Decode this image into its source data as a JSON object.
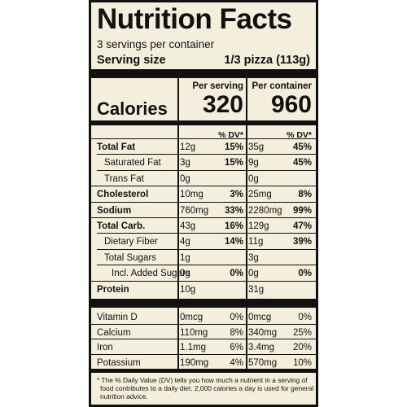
{
  "title": "Nutrition Facts",
  "servings_per_container": "3 servings per container",
  "serving_size_label": "Serving size",
  "serving_size_value": "1/3 pizza (113g)",
  "col_per_serving": "Per serving",
  "col_per_container": "Per container",
  "calories_label": "Calories",
  "calories_serving": "320",
  "calories_container": "960",
  "dv_header": "% DV*",
  "rows": [
    {
      "label": "Total Fat",
      "bold": true,
      "indent": 0,
      "s_amt": "12g",
      "s_dv": "15%",
      "c_amt": "35g",
      "c_dv": "45%"
    },
    {
      "label": "Saturated Fat",
      "bold": false,
      "indent": 1,
      "s_amt": "3g",
      "s_dv": "15%",
      "c_amt": "9g",
      "c_dv": "45%"
    },
    {
      "label": "Trans Fat",
      "bold": false,
      "indent": 1,
      "s_amt": "0g",
      "s_dv": "",
      "c_amt": "0g",
      "c_dv": ""
    },
    {
      "label": "Cholesterol",
      "bold": true,
      "indent": 0,
      "s_amt": "10mg",
      "s_dv": "3%",
      "c_amt": "25mg",
      "c_dv": "8%"
    },
    {
      "label": "Sodium",
      "bold": true,
      "indent": 0,
      "s_amt": "760mg",
      "s_dv": "33%",
      "c_amt": "2280mg",
      "c_dv": "99%"
    },
    {
      "label": "Total Carb.",
      "bold": true,
      "indent": 0,
      "s_amt": "43g",
      "s_dv": "16%",
      "c_amt": "129g",
      "c_dv": "47%"
    },
    {
      "label": "Dietary Fiber",
      "bold": false,
      "indent": 1,
      "s_amt": "4g",
      "s_dv": "14%",
      "c_amt": "11g",
      "c_dv": "39%"
    },
    {
      "label": "Total Sugars",
      "bold": false,
      "indent": 1,
      "s_amt": "1g",
      "s_dv": "",
      "c_amt": "3g",
      "c_dv": ""
    },
    {
      "label": "Incl. Added Sugars",
      "bold": false,
      "indent": 2,
      "s_amt": "0g",
      "s_dv": "0%",
      "c_amt": "0g",
      "c_dv": "0%"
    },
    {
      "label": "Protein",
      "bold": true,
      "indent": 0,
      "s_amt": "10g",
      "s_dv": "",
      "c_amt": "31g",
      "c_dv": ""
    }
  ],
  "vitamins": [
    {
      "label": "Vitamin D",
      "s_amt": "0mcg",
      "s_dv": "0%",
      "c_amt": "0mcg",
      "c_dv": "0%"
    },
    {
      "label": "Calcium",
      "s_amt": "110mg",
      "s_dv": "8%",
      "c_amt": "340mg",
      "c_dv": "25%"
    },
    {
      "label": "Iron",
      "s_amt": "1.1mg",
      "s_dv": "6%",
      "c_amt": "3.4mg",
      "c_dv": "20%"
    },
    {
      "label": "Potassium",
      "s_amt": "190mg",
      "s_dv": "4%",
      "c_amt": "570mg",
      "c_dv": "10%"
    }
  ],
  "footnote": "* The % Daily Value (DV) tells you how much a nutrient in a serving of food contributes to a daily diet. 2,000 calories a day is used for general nutrition advice.",
  "colors": {
    "background": "#f4eedd",
    "ink": "#111111"
  }
}
